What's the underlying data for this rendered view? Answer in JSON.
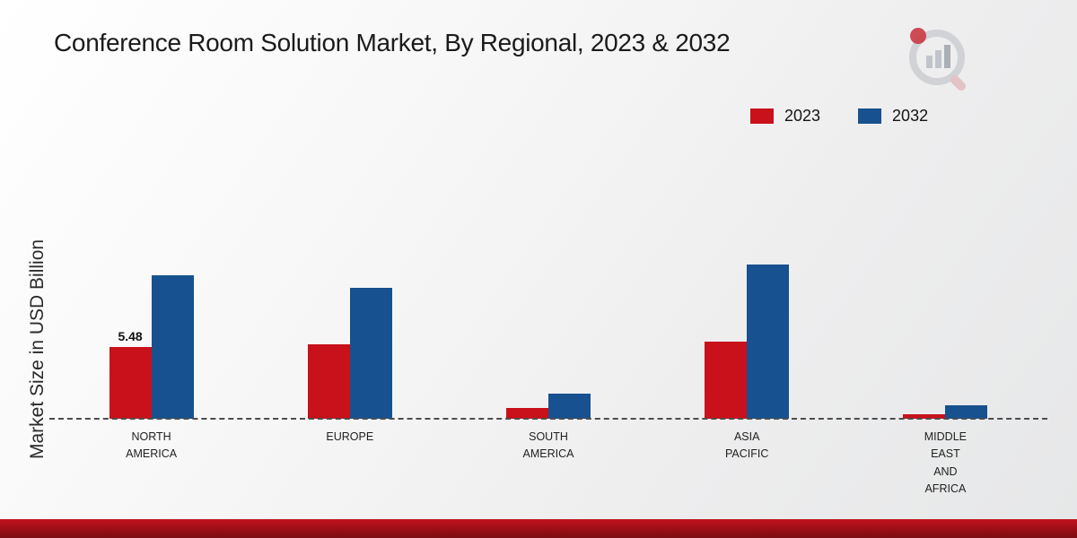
{
  "title": "Conference Room Solution Market, By Regional, 2023 & 2032",
  "ylabel": "Market Size in USD Billion",
  "legend": [
    {
      "label": "2023",
      "color": "#c8111b"
    },
    {
      "label": "2032",
      "color": "#17518f"
    }
  ],
  "colors": {
    "series_2023": "#c8111b",
    "series_2032": "#17518f",
    "footer_strip": "#a01018",
    "baseline": "#4d4d4d"
  },
  "chart_data": {
    "type": "bar",
    "title": "Conference Room Solution Market, By Regional, 2023 & 2032",
    "xlabel": "",
    "ylabel": "Market Size in USD Billion",
    "categories": [
      "NORTH\nAMERICA",
      "EUROPE",
      "SOUTH\nAMERICA",
      "ASIA\nPACIFIC",
      "MIDDLE\nEAST\nAND\nAFRICA"
    ],
    "series": [
      {
        "name": "2023",
        "color": "#c8111b",
        "values": [
          5.48,
          5.7,
          0.8,
          5.9,
          0.35
        ]
      },
      {
        "name": "2032",
        "color": "#17518f",
        "values": [
          11.0,
          10.0,
          1.9,
          11.8,
          1.0
        ]
      }
    ],
    "annotations": [
      {
        "category_index": 0,
        "series": "2023",
        "text": "5.48"
      }
    ],
    "legend_position": "top-right",
    "grid": false,
    "baseline_style": "dashed"
  }
}
